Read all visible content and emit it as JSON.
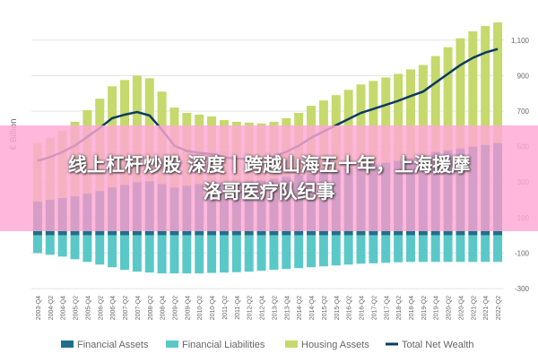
{
  "chart_data": {
    "type": "bar",
    "y_label": "€ Billion",
    "categories": [
      "2003-Q4",
      "2004-Q2",
      "2004-Q4",
      "2005-Q2",
      "2005-Q4",
      "2006-Q2",
      "2006-Q4",
      "2007-Q2",
      "2007-Q4",
      "2008-Q2",
      "2008-Q4",
      "2009-Q2",
      "2009-Q4",
      "2010-Q2",
      "2010-Q4",
      "2011-Q2",
      "2011-Q4",
      "2012-Q2",
      "2012-Q4",
      "2013-Q2",
      "2013-Q4",
      "2014-Q2",
      "2014-Q4",
      "2015-Q2",
      "2015-Q4",
      "2016-Q2",
      "2016-Q4",
      "2017-Q2",
      "2017-Q4",
      "2018-Q2",
      "2018-Q4",
      "2019-Q2",
      "2019-Q4",
      "2020-Q2",
      "2020-Q4",
      "2021-Q2",
      "2021-Q4",
      "2022-Q2"
    ],
    "series": [
      {
        "name": "Financial Assets",
        "color": "#1f6f8b",
        "type": "bar",
        "values": [
          190,
          200,
          210,
          220,
          235,
          250,
          270,
          285,
          300,
          305,
          290,
          270,
          280,
          290,
          300,
          300,
          300,
          305,
          310,
          320,
          330,
          340,
          350,
          360,
          370,
          380,
          390,
          400,
          410,
          420,
          435,
          450,
          470,
          480,
          490,
          500,
          510,
          520
        ]
      },
      {
        "name": "Financial Liabilities",
        "color": "#5bc8c8",
        "type": "bar",
        "values": [
          -100,
          -110,
          -120,
          -135,
          -150,
          -165,
          -180,
          -195,
          -205,
          -210,
          -215,
          -215,
          -215,
          -215,
          -212,
          -210,
          -208,
          -205,
          -200,
          -195,
          -190,
          -185,
          -180,
          -175,
          -170,
          -165,
          -160,
          -158,
          -155,
          -152,
          -150,
          -150,
          -150,
          -150,
          -150,
          -150,
          -150,
          -150
        ]
      },
      {
        "name": "Housing Assets",
        "color": "#c5d96d",
        "type": "bar",
        "values": [
          330,
          350,
          380,
          420,
          470,
          520,
          570,
          590,
          600,
          580,
          520,
          450,
          410,
          390,
          370,
          350,
          340,
          330,
          320,
          320,
          330,
          350,
          380,
          400,
          420,
          440,
          460,
          470,
          480,
          490,
          500,
          510,
          540,
          580,
          620,
          650,
          670,
          680
        ]
      },
      {
        "name": "Total Net Wealth",
        "color": "#0d3b5e",
        "type": "line",
        "values": [
          420,
          440,
          470,
          505,
          555,
          605,
          660,
          680,
          695,
          675,
          595,
          505,
          475,
          465,
          458,
          440,
          432,
          430,
          430,
          445,
          470,
          505,
          550,
          585,
          620,
          655,
          690,
          712,
          735,
          758,
          785,
          810,
          860,
          910,
          960,
          1000,
          1030,
          1050
        ]
      }
    ],
    "ylim": [
      -300,
      1200
    ],
    "yticks": [
      -300,
      -100,
      100,
      300,
      500,
      700,
      900,
      {
        "value": 1100,
        "label": "1,100"
      }
    ],
    "grid": true
  },
  "overlay": {
    "lines": [
      "线上杠杆炒股 深度丨跨越山海五十年，上海援摩",
      "洛哥医疗队纪事"
    ]
  }
}
